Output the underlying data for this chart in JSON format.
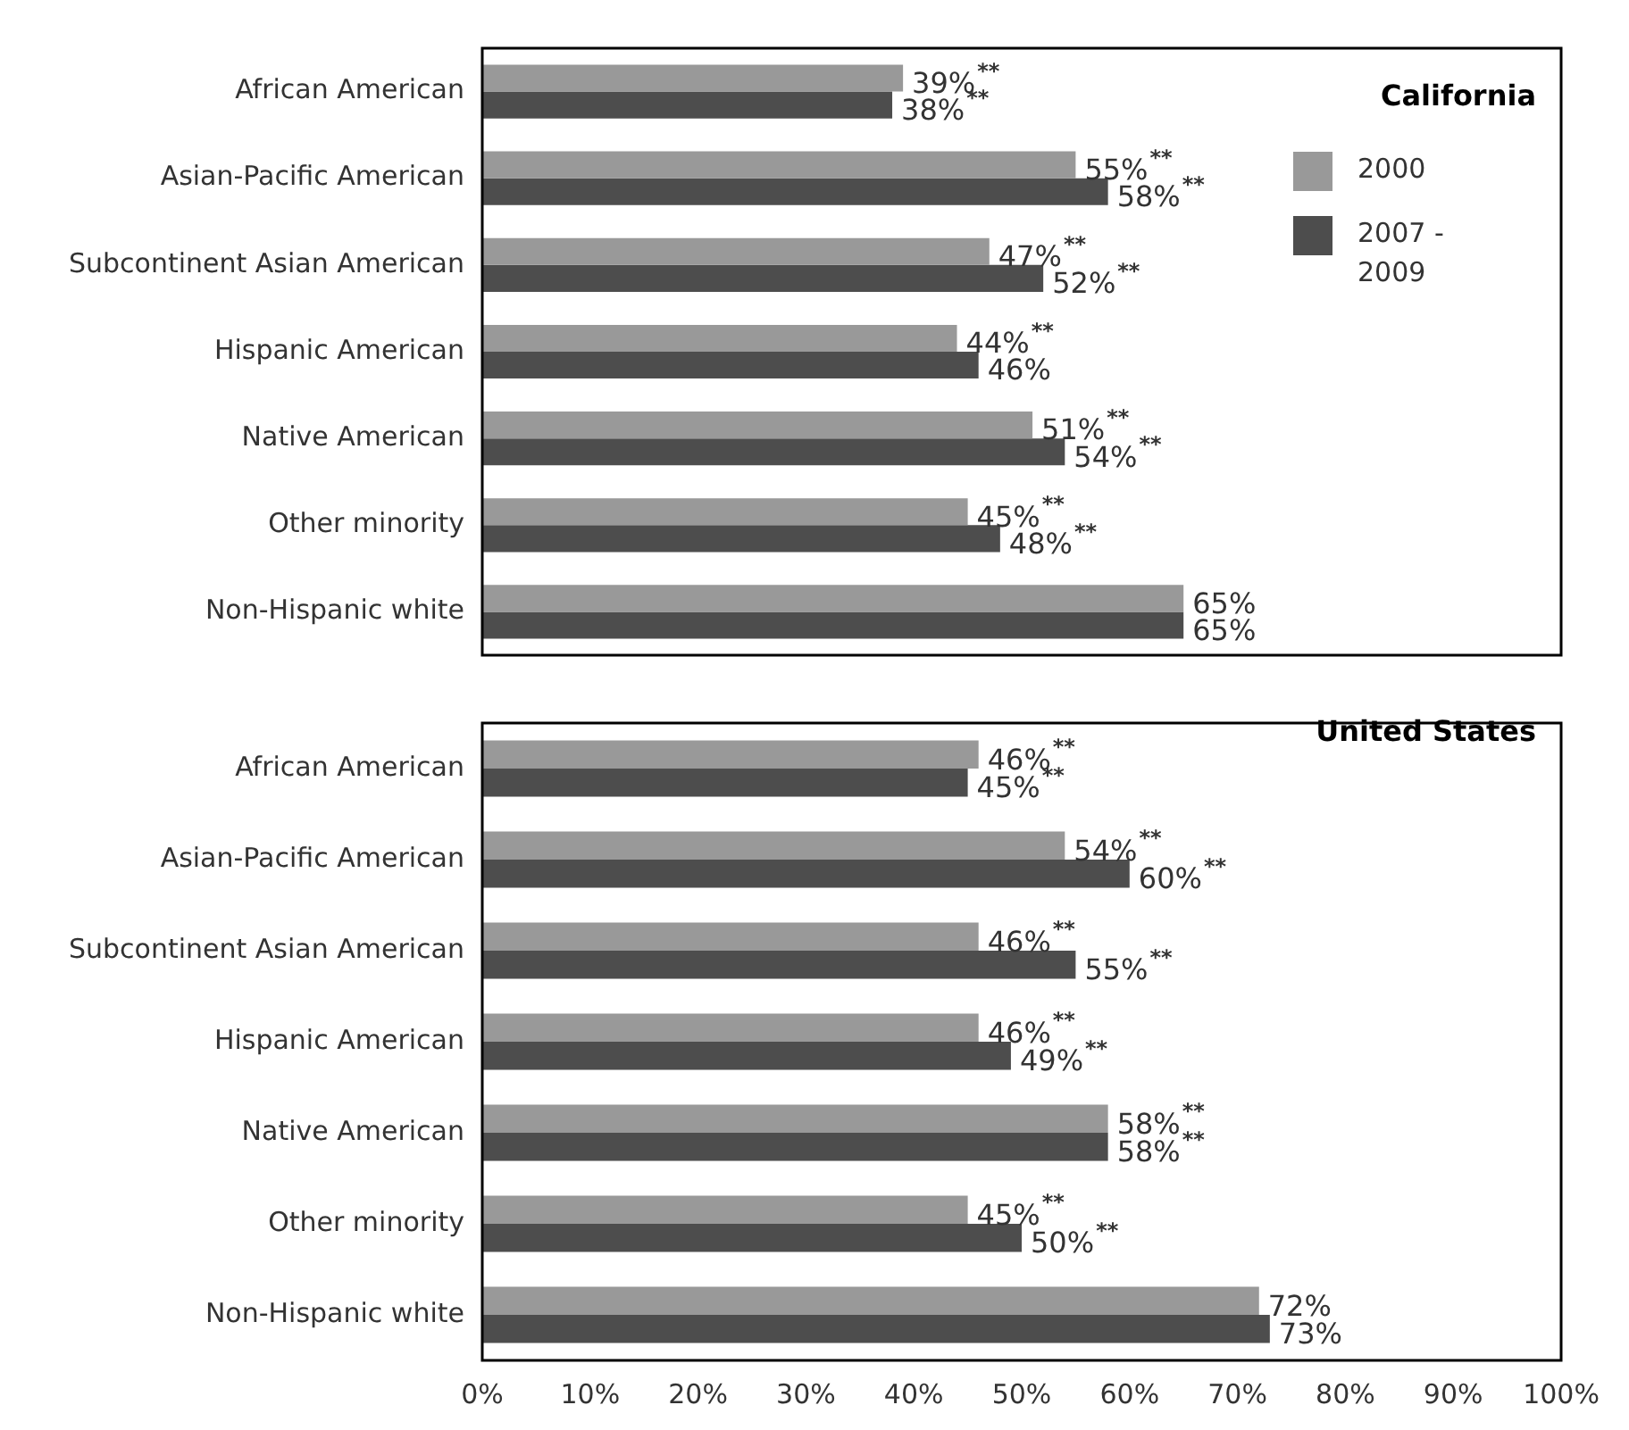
{
  "chart_data": [
    {
      "type": "bar",
      "orientation": "horizontal",
      "title": "California",
      "categories": [
        "African American",
        "Asian-Pacific American",
        "Subcontinent Asian American",
        "Hispanic American",
        "Native American",
        "Other minority",
        "Non-Hispanic white"
      ],
      "series": [
        {
          "name": "2000",
          "color": "#999999",
          "values": [
            39,
            55,
            47,
            44,
            51,
            45,
            65
          ],
          "value_labels": [
            "39%$^{**}$",
            "55%$^{**}$",
            "47%$^{**}$",
            "44%$^{**}$",
            "51%$^{**}$",
            "45%$^{**}$",
            "65%"
          ]
        },
        {
          "name": "2007 - 2009",
          "color": "#4d4d4d",
          "values": [
            38,
            58,
            52,
            46,
            54,
            48,
            65
          ],
          "value_labels": [
            "38%$^{**}$",
            "58%$^{**}$",
            "52%$^{**}$",
            "46%",
            "54%$^{**}$",
            "48%$^{**}$",
            "65%"
          ]
        }
      ],
      "xlim": [
        0,
        100
      ],
      "tick_labels": "y",
      "grid": false,
      "legend": "top right"
    },
    {
      "type": "bar",
      "orientation": "horizontal",
      "title": "United States",
      "categories": [
        "African American",
        "Asian-Pacific American",
        "Subcontinent Asian American",
        "Hispanic American",
        "Native American",
        "Other minority",
        "Non-Hispanic white"
      ],
      "series": [
        {
          "color": "#999999",
          "values": [
            46,
            54,
            46,
            46,
            58,
            45,
            72
          ],
          "value_labels": [
            "46%$^{**}$",
            "54%$^{**}$",
            "46%$^{**}$",
            "46%$^{**}$",
            "58%$^{**}$",
            "45%$^{**}$",
            "72%"
          ]
        },
        {
          "color": "#4d4d4d",
          "values": [
            45,
            60,
            55,
            49,
            58,
            50,
            73
          ],
          "value_labels": [
            "45%$^{**}$",
            "60%$^{**}$",
            "55%$^{**}$",
            "49%$^{**}$",
            "58%$^{**}$",
            "50%$^{**}$",
            "73%"
          ]
        }
      ],
      "xlim": [
        0,
        100
      ],
      "xticks": [
        {
          "value": 0,
          "label": "0%"
        },
        {
          "value": 10,
          "label": "10%"
        },
        {
          "value": 20,
          "label": "20%"
        },
        {
          "value": 30,
          "label": "30%"
        },
        {
          "value": 40,
          "label": "40%"
        },
        {
          "value": 50,
          "label": "50%"
        },
        {
          "value": 60,
          "label": "60%"
        },
        {
          "value": 70,
          "label": "70%"
        },
        {
          "value": 80,
          "label": "80%"
        },
        {
          "value": 90,
          "label": "90%"
        },
        {
          "value": 100,
          "label": "100%"
        }
      ],
      "grid": false,
      "legend": false
    }
  ]
}
